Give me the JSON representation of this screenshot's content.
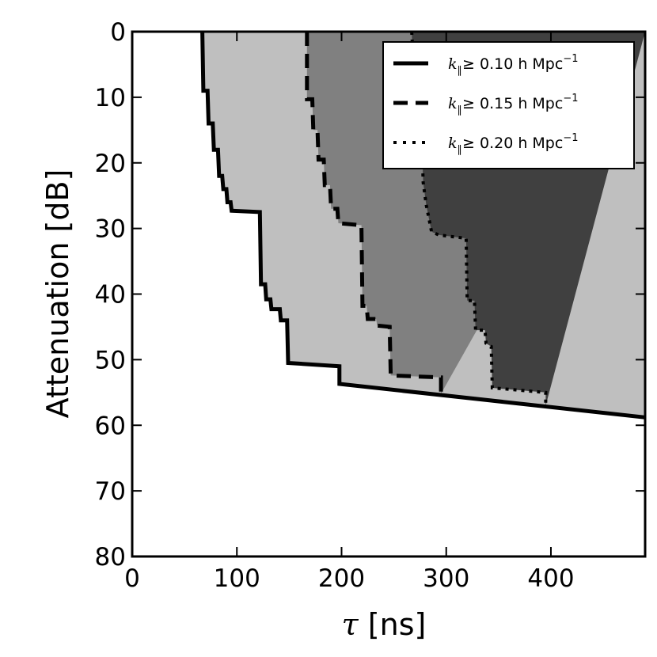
{
  "chart_data": {
    "type": "area",
    "xlabel": {
      "symbol": "τ",
      "rest": " [ns]"
    },
    "ylabel": "Attenuation [dB]",
    "xlim": [
      0,
      490
    ],
    "ylim": [
      80,
      0
    ],
    "y_inverted": true,
    "xticks": [
      0,
      100,
      200,
      300,
      400
    ],
    "yticks": [
      0,
      10,
      20,
      30,
      40,
      50,
      60,
      70,
      80
    ],
    "grid": false,
    "legend_position": "top-right",
    "series": [
      {
        "name": {
          "k": "k",
          "sub": "∥",
          "cond": "≥ 0.10 h Mpc",
          "exp": "−1"
        },
        "line_style": "solid",
        "fill_color": "#bfbfbf",
        "points": [
          [
            67,
            0
          ],
          [
            68,
            9
          ],
          [
            72,
            9
          ],
          [
            73,
            14
          ],
          [
            77,
            14
          ],
          [
            78,
            18
          ],
          [
            82,
            18
          ],
          [
            83,
            22
          ],
          [
            86,
            22
          ],
          [
            87,
            24
          ],
          [
            90,
            24
          ],
          [
            91,
            26
          ],
          [
            94,
            26
          ],
          [
            95,
            27.3
          ],
          [
            122,
            27.5
          ],
          [
            123,
            38.5
          ],
          [
            127,
            38.5
          ],
          [
            128,
            40.8
          ],
          [
            132,
            40.8
          ],
          [
            133,
            42.3
          ],
          [
            141,
            42.3
          ],
          [
            142,
            44
          ],
          [
            148,
            44
          ],
          [
            149,
            50.5
          ],
          [
            198,
            51
          ],
          [
            198,
            53.7
          ],
          [
            490,
            58.8
          ]
        ]
      },
      {
        "name": {
          "k": "k",
          "sub": "∥",
          "cond": "≥ 0.15 h Mpc",
          "exp": "−1"
        },
        "line_style": "dashed",
        "fill_color": "#808080",
        "points": [
          [
            167,
            0
          ],
          [
            167,
            10.3
          ],
          [
            172,
            10.3
          ],
          [
            173,
            15
          ],
          [
            177,
            15
          ],
          [
            178,
            19.5
          ],
          [
            183,
            19.5
          ],
          [
            184,
            23.4
          ],
          [
            189,
            23.4
          ],
          [
            190,
            27
          ],
          [
            196,
            27
          ],
          [
            197,
            29.2
          ],
          [
            219,
            29.5
          ],
          [
            220,
            41.8
          ],
          [
            224,
            41.8
          ],
          [
            225,
            43.8
          ],
          [
            233,
            43.8
          ],
          [
            234,
            44.8
          ],
          [
            246,
            45
          ],
          [
            247,
            52.4
          ],
          [
            295,
            52.7
          ],
          [
            295,
            55.2
          ]
        ]
      },
      {
        "name": {
          "k": "k",
          "sub": "∥",
          "cond": "≥ 0.20 h Mpc",
          "exp": "−1"
        },
        "line_style": "dotted",
        "fill_color": "#404040",
        "points": [
          [
            267,
            0
          ],
          [
            272,
            14.5
          ],
          [
            277,
            18
          ],
          [
            278,
            23
          ],
          [
            281,
            26.5
          ],
          [
            286,
            30.5
          ],
          [
            293,
            31
          ],
          [
            319,
            31.5
          ],
          [
            320,
            41
          ],
          [
            327,
            41
          ],
          [
            328,
            45.5
          ],
          [
            337,
            45.5
          ],
          [
            338,
            47.5
          ],
          [
            343,
            48
          ],
          [
            344,
            54.3
          ],
          [
            395,
            55
          ],
          [
            395,
            57
          ]
        ]
      }
    ]
  }
}
